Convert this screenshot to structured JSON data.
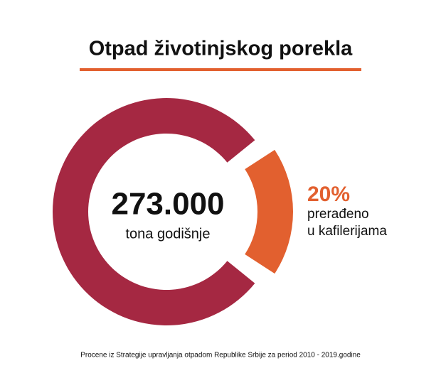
{
  "chart_data": {
    "type": "donut",
    "title": "Otpad životinjskog porekla",
    "center_value": "273.000",
    "center_label": "tona godišnje",
    "categories": [
      null,
      "prerađeno\nu kafilerijama"
    ],
    "values": [
      80,
      20
    ],
    "value_labels": [
      null,
      "20%"
    ],
    "colors": [
      "#a52842",
      "#e2602f"
    ],
    "source": "Procene iz Strategije upravljanja otpadom Republike Srbije za period  2010 - 2019.godine"
  }
}
